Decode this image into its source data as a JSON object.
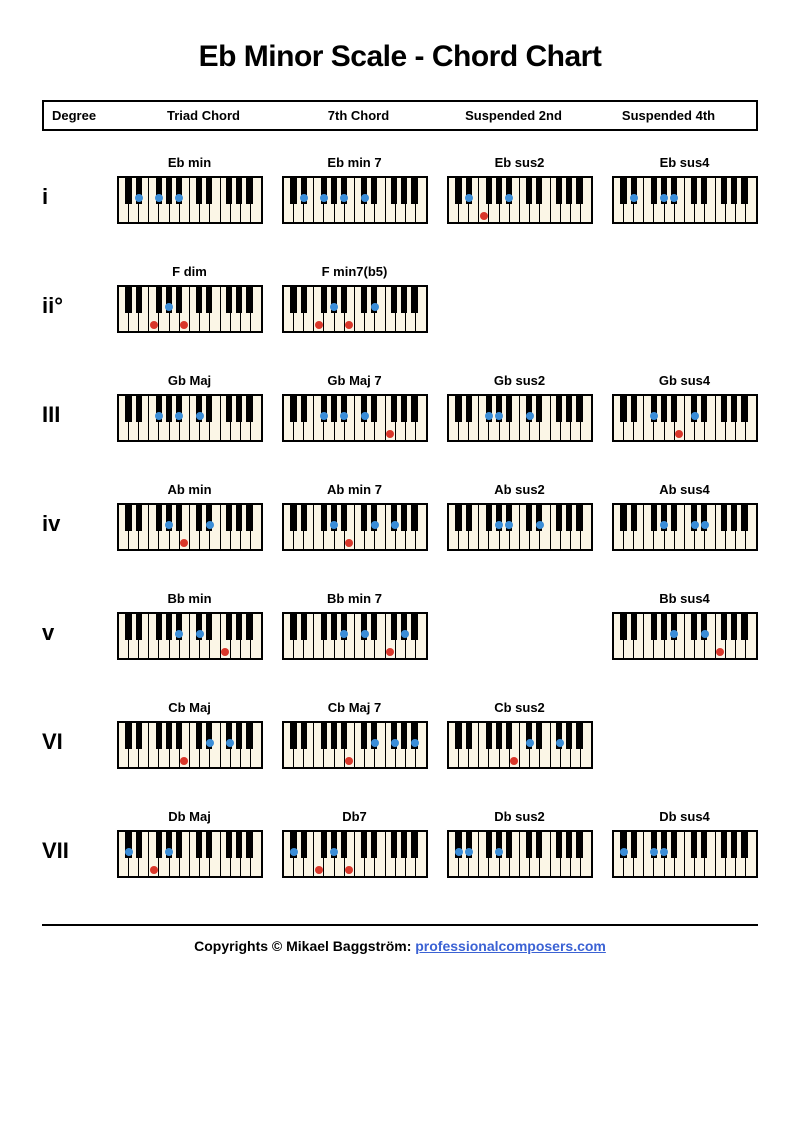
{
  "title": "Eb Minor Scale - Chord Chart",
  "columns": {
    "degree": "Degree",
    "triad": "Triad Chord",
    "seventh": "7th Chord",
    "sus2": "Suspended 2nd",
    "sus4": "Suspended 4th"
  },
  "keyboard": {
    "white_key_count": 14,
    "white_key_bg": "#fbf6e6",
    "frame_color": "#000000",
    "dot_blue": "#3b8ed8",
    "dot_red": "#d9372a",
    "black_key_offsets": [
      1,
      2,
      4,
      5,
      6,
      8,
      9,
      11,
      12,
      13
    ],
    "note_positions": {
      "C0": {
        "x": 0.036,
        "white": true
      },
      "Db0": {
        "x": 0.072,
        "white": false
      },
      "D0": {
        "x": 0.107,
        "white": true
      },
      "Eb0": {
        "x": 0.143,
        "white": false
      },
      "E0": {
        "x": 0.179,
        "white": true
      },
      "F0": {
        "x": 0.25,
        "white": true
      },
      "Gb0": {
        "x": 0.286,
        "white": false
      },
      "G0": {
        "x": 0.321,
        "white": true
      },
      "Ab0": {
        "x": 0.357,
        "white": false
      },
      "A0": {
        "x": 0.393,
        "white": true
      },
      "Bb0": {
        "x": 0.429,
        "white": false
      },
      "B0": {
        "x": 0.464,
        "white": true
      },
      "Cb1": {
        "x": 0.464,
        "white": true
      },
      "C1": {
        "x": 0.536,
        "white": true
      },
      "Db1": {
        "x": 0.572,
        "white": false
      },
      "D1": {
        "x": 0.607,
        "white": true
      },
      "Eb1": {
        "x": 0.643,
        "white": false
      },
      "E1": {
        "x": 0.679,
        "white": true
      },
      "F1": {
        "x": 0.75,
        "white": true
      },
      "Gb1": {
        "x": 0.786,
        "white": false
      },
      "G1": {
        "x": 0.821,
        "white": true
      },
      "Ab1": {
        "x": 0.857,
        "white": false
      },
      "A1": {
        "x": 0.893,
        "white": true
      },
      "Bb1": {
        "x": 0.929,
        "white": false
      },
      "B1": {
        "x": 0.964,
        "white": true
      }
    }
  },
  "rows": [
    {
      "degree": "i",
      "chords": [
        {
          "name": "Eb min",
          "notes": [
            {
              "n": "Eb0",
              "c": "blue"
            },
            {
              "n": "Gb0",
              "c": "blue"
            },
            {
              "n": "Bb0",
              "c": "blue"
            }
          ]
        },
        {
          "name": "Eb min 7",
          "notes": [
            {
              "n": "Eb0",
              "c": "blue"
            },
            {
              "n": "Gb0",
              "c": "blue"
            },
            {
              "n": "Bb0",
              "c": "blue"
            },
            {
              "n": "Db1",
              "c": "blue"
            }
          ]
        },
        {
          "name": "Eb sus2",
          "notes": [
            {
              "n": "Eb0",
              "c": "blue"
            },
            {
              "n": "F0",
              "c": "red"
            },
            {
              "n": "Bb0",
              "c": "blue"
            }
          ]
        },
        {
          "name": "Eb sus4",
          "notes": [
            {
              "n": "Eb0",
              "c": "blue"
            },
            {
              "n": "Ab0",
              "c": "blue"
            },
            {
              "n": "Bb0",
              "c": "blue"
            }
          ]
        }
      ]
    },
    {
      "degree": "ii°",
      "chords": [
        {
          "name": "F dim",
          "notes": [
            {
              "n": "F0",
              "c": "red"
            },
            {
              "n": "Ab0",
              "c": "blue"
            },
            {
              "n": "Cb1",
              "c": "red"
            }
          ]
        },
        {
          "name": "F min7(b5)",
          "notes": [
            {
              "n": "F0",
              "c": "red"
            },
            {
              "n": "Ab0",
              "c": "blue"
            },
            {
              "n": "Cb1",
              "c": "red"
            },
            {
              "n": "Eb1",
              "c": "blue"
            }
          ]
        },
        null,
        null
      ]
    },
    {
      "degree": "III",
      "chords": [
        {
          "name": "Gb Maj",
          "notes": [
            {
              "n": "Gb0",
              "c": "blue"
            },
            {
              "n": "Bb0",
              "c": "blue"
            },
            {
              "n": "Db1",
              "c": "blue"
            }
          ]
        },
        {
          "name": "Gb Maj 7",
          "notes": [
            {
              "n": "Gb0",
              "c": "blue"
            },
            {
              "n": "Bb0",
              "c": "blue"
            },
            {
              "n": "Db1",
              "c": "blue"
            },
            {
              "n": "F1",
              "c": "red"
            }
          ]
        },
        {
          "name": "Gb sus2",
          "notes": [
            {
              "n": "Gb0",
              "c": "blue"
            },
            {
              "n": "Ab0",
              "c": "blue"
            },
            {
              "n": "Db1",
              "c": "blue"
            }
          ]
        },
        {
          "name": "Gb sus4",
          "notes": [
            {
              "n": "Gb0",
              "c": "blue"
            },
            {
              "n": "Cb1",
              "c": "red"
            },
            {
              "n": "Db1",
              "c": "blue"
            }
          ]
        }
      ]
    },
    {
      "degree": "iv",
      "chords": [
        {
          "name": "Ab min",
          "notes": [
            {
              "n": "Ab0",
              "c": "blue"
            },
            {
              "n": "Cb1",
              "c": "red"
            },
            {
              "n": "Eb1",
              "c": "blue"
            }
          ]
        },
        {
          "name": "Ab min 7",
          "notes": [
            {
              "n": "Ab0",
              "c": "blue"
            },
            {
              "n": "Cb1",
              "c": "red"
            },
            {
              "n": "Eb1",
              "c": "blue"
            },
            {
              "n": "Gb1",
              "c": "blue"
            }
          ]
        },
        {
          "name": "Ab sus2",
          "notes": [
            {
              "n": "Ab0",
              "c": "blue"
            },
            {
              "n": "Bb0",
              "c": "blue"
            },
            {
              "n": "Eb1",
              "c": "blue"
            }
          ]
        },
        {
          "name": "Ab sus4",
          "notes": [
            {
              "n": "Ab0",
              "c": "blue"
            },
            {
              "n": "Db1",
              "c": "blue"
            },
            {
              "n": "Eb1",
              "c": "blue"
            }
          ]
        }
      ]
    },
    {
      "degree": "v",
      "chords": [
        {
          "name": "Bb min",
          "notes": [
            {
              "n": "Bb0",
              "c": "blue"
            },
            {
              "n": "Db1",
              "c": "blue"
            },
            {
              "n": "F1",
              "c": "red"
            }
          ]
        },
        {
          "name": "Bb min 7",
          "notes": [
            {
              "n": "Bb0",
              "c": "blue"
            },
            {
              "n": "Db1",
              "c": "blue"
            },
            {
              "n": "F1",
              "c": "red"
            },
            {
              "n": "Ab1",
              "c": "blue"
            }
          ]
        },
        null,
        {
          "name": "Bb sus4",
          "notes": [
            {
              "n": "Bb0",
              "c": "blue"
            },
            {
              "n": "Eb1",
              "c": "blue"
            },
            {
              "n": "F1",
              "c": "red"
            }
          ]
        }
      ]
    },
    {
      "degree": "VI",
      "chords": [
        {
          "name": "Cb Maj",
          "notes": [
            {
              "n": "Cb1",
              "c": "red"
            },
            {
              "n": "Eb1",
              "c": "blue"
            },
            {
              "n": "Gb1",
              "c": "blue"
            }
          ]
        },
        {
          "name": "Cb Maj 7",
          "notes": [
            {
              "n": "Cb1",
              "c": "red"
            },
            {
              "n": "Eb1",
              "c": "blue"
            },
            {
              "n": "Gb1",
              "c": "blue"
            },
            {
              "n": "Bb1",
              "c": "blue"
            }
          ]
        },
        {
          "name": "Cb sus2",
          "notes": [
            {
              "n": "Cb1",
              "c": "red"
            },
            {
              "n": "Db1",
              "c": "blue"
            },
            {
              "n": "Gb1",
              "c": "blue"
            }
          ]
        },
        null
      ]
    },
    {
      "degree": "VII",
      "chords": [
        {
          "name": "Db Maj",
          "notes": [
            {
              "n": "Db0",
              "c": "blue"
            },
            {
              "n": "F0",
              "c": "red"
            },
            {
              "n": "Ab0",
              "c": "blue"
            }
          ]
        },
        {
          "name": "Db7",
          "notes": [
            {
              "n": "Db0",
              "c": "blue"
            },
            {
              "n": "F0",
              "c": "red"
            },
            {
              "n": "Ab0",
              "c": "blue"
            },
            {
              "n": "Cb1",
              "c": "red"
            }
          ]
        },
        {
          "name": "Db sus2",
          "notes": [
            {
              "n": "Db0",
              "c": "blue"
            },
            {
              "n": "Eb0",
              "c": "blue"
            },
            {
              "n": "Ab0",
              "c": "blue"
            }
          ]
        },
        {
          "name": "Db sus4",
          "notes": [
            {
              "n": "Db0",
              "c": "blue"
            },
            {
              "n": "Gb0",
              "c": "blue"
            },
            {
              "n": "Ab0",
              "c": "blue"
            }
          ]
        }
      ]
    }
  ],
  "footer": {
    "prefix": "Copyrights © Mikael Baggström: ",
    "link_text": "professionalcomposers.com"
  }
}
